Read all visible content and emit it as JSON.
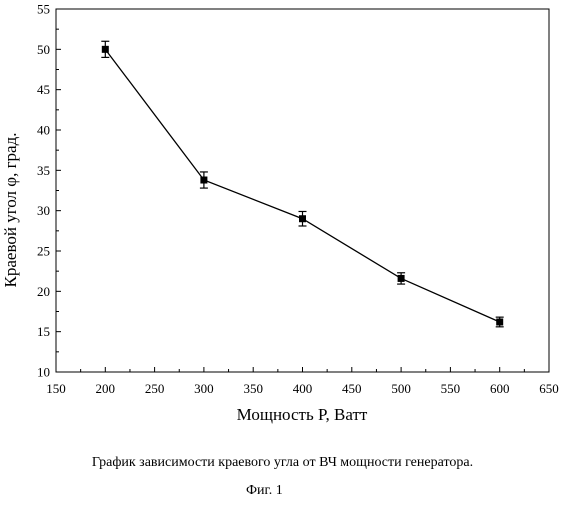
{
  "chart_data": {
    "type": "line",
    "x": [
      200,
      300,
      400,
      500,
      600
    ],
    "series": [
      {
        "values": [
          50.0,
          33.8,
          29.0,
          21.6,
          16.2
        ],
        "error": [
          1.0,
          1.0,
          0.9,
          0.7,
          0.6
        ]
      }
    ],
    "xlabel": "Мощность P, Ватт",
    "ylabel": "Краевой угол φ, град.",
    "xlim": [
      150,
      650
    ],
    "ylim": [
      10,
      55
    ],
    "xticks": [
      150,
      200,
      250,
      300,
      350,
      400,
      450,
      500,
      550,
      600,
      650
    ],
    "yticks": [
      10,
      15,
      20,
      25,
      30,
      35,
      40,
      45,
      50,
      55
    ],
    "grid": false,
    "marker": "square",
    "color": "#000000"
  },
  "caption": {
    "main": "График зависимости краевого угла от ВЧ мощности генератора.",
    "figure": "Фиг. 1"
  }
}
